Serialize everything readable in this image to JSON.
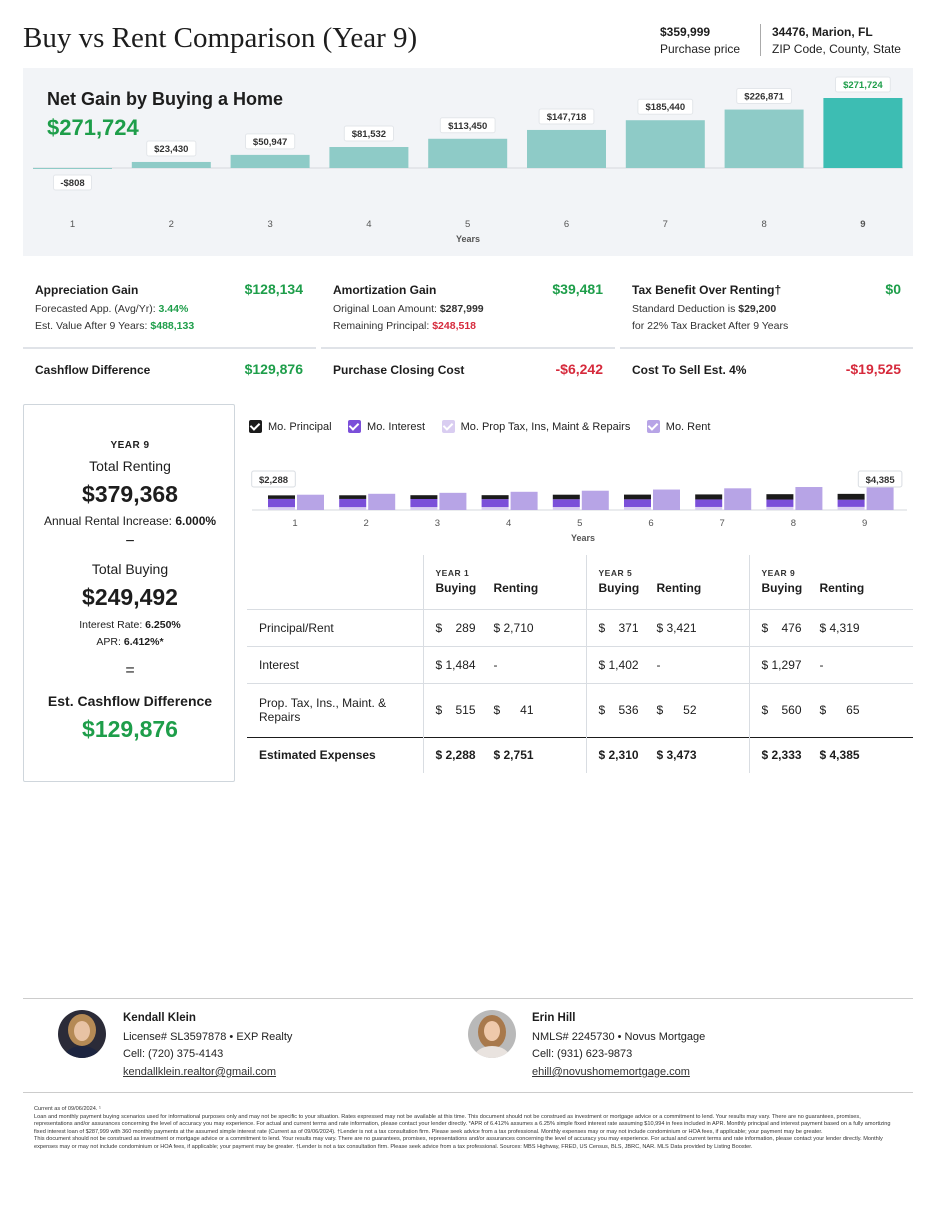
{
  "header": {
    "title": "Buy vs Rent Comparison (Year 9)",
    "price_value": "$359,999",
    "price_label": "Purchase price",
    "location_value": "34476, Marion, FL",
    "location_label": "ZIP Code, County, State"
  },
  "net_gain": {
    "title": "Net Gain by Buying a Home",
    "value": "$271,724",
    "x_label": "Years"
  },
  "chart_data": [
    {
      "type": "bar",
      "title": "Net Gain by Buying a Home",
      "xlabel": "Years",
      "categories": [
        "1",
        "2",
        "3",
        "4",
        "5",
        "6",
        "7",
        "8",
        "9"
      ],
      "values": [
        -808,
        23430,
        50947,
        81532,
        113450,
        147718,
        185440,
        226871,
        271724
      ],
      "labels": [
        "-$808",
        "$23,430",
        "$50,947",
        "$81,532",
        "$113,450",
        "$147,718",
        "$185,440",
        "$226,871",
        "$271,724"
      ],
      "colors": {
        "bar": "#8ecbc7",
        "highlight": "#3dbdb3"
      }
    },
    {
      "type": "bar",
      "xlabel": "Years",
      "categories": [
        "1",
        "2",
        "3",
        "4",
        "5",
        "6",
        "7",
        "8",
        "9"
      ],
      "series": [
        {
          "name": "Mo. Principal",
          "values": [
            289,
            300,
            311,
            322,
            371,
            386,
            410,
            440,
            476
          ]
        },
        {
          "name": "Mo. Interest",
          "values": [
            1484,
            1470,
            1455,
            1430,
            1402,
            1380,
            1355,
            1325,
            1297
          ]
        },
        {
          "name": "Mo. Prop Tax, Ins, Maint & Repairs",
          "values": [
            515,
            520,
            525,
            530,
            536,
            542,
            548,
            554,
            560
          ]
        },
        {
          "name": "Mo. Rent",
          "values": [
            2751,
            2916,
            3091,
            3277,
            3473,
            3682,
            3903,
            4137,
            4385
          ]
        }
      ],
      "buy_labels": {
        "index": 0,
        "text": "$2,288"
      },
      "rent_labels": {
        "index": 8,
        "text": "$4,385"
      },
      "colors": {
        "principal": "#1b1b1b",
        "interest": "#7b4fd9",
        "tax": "#d9cdf1",
        "rent": "#b7a4e6"
      }
    }
  ],
  "stats": {
    "appreciation": {
      "title": "Appreciation Gain",
      "value": "$128,134",
      "line1_label": "Forecasted App. (Avg/Yr): ",
      "line1_value": "3.44%",
      "line2_label": "Est. Value After 9 Years: ",
      "line2_value": "$488,133"
    },
    "amortization": {
      "title": "Amortization Gain",
      "value": "$39,481",
      "line1_label": "Original Loan Amount: ",
      "line1_value": "$287,999",
      "line2_label": "Remaining Principal: ",
      "line2_value": "$248,518"
    },
    "tax_benefit": {
      "title": "Tax Benefit Over Renting†",
      "value": "$0",
      "line1_label": "Standard Deduction is ",
      "line1_value": "$29,200",
      "line2_label": "for 22% Tax Bracket After 9 Years"
    },
    "cashflow": {
      "title": "Cashflow Difference",
      "value": "$129,876"
    },
    "closing": {
      "title": "Purchase Closing Cost",
      "value": "-$6,242"
    },
    "sell": {
      "title": "Cost To Sell Est. 4%",
      "value": "-$19,525"
    }
  },
  "left_card": {
    "year": "YEAR 9",
    "renting_label": "Total Renting",
    "renting_value": "$379,368",
    "rent_increase_label": "Annual Rental Increase: ",
    "rent_increase_value": "6.000%",
    "minus": "−",
    "buying_label": "Total Buying",
    "buying_value": "$249,492",
    "interest_label": "Interest Rate: ",
    "interest_value": "6.250%",
    "apr_label": "APR: ",
    "apr_value": "6.412%*",
    "equals": "=",
    "cashflow_label": "Est. Cashflow Difference",
    "cashflow_value": "$129,876"
  },
  "legend": [
    "Mo. Principal",
    "Mo. Interest",
    "Mo. Prop Tax, Ins, Maint & Repairs",
    "Mo. Rent"
  ],
  "expenses": {
    "groups": [
      {
        "year": "YEAR 1",
        "buying": "Buying",
        "renting": "Renting"
      },
      {
        "year": "YEAR 5",
        "buying": "Buying",
        "renting": "Renting"
      },
      {
        "year": "YEAR 9",
        "buying": "Buying",
        "renting": "Renting"
      }
    ],
    "rows": [
      {
        "label": "Principal/Rent",
        "cells": [
          [
            "$    289",
            "$ 2,710"
          ],
          [
            "$    371",
            "$ 3,421"
          ],
          [
            "$    476",
            "$ 4,319"
          ]
        ]
      },
      {
        "label": "Interest",
        "cells": [
          [
            "$ 1,484",
            "-"
          ],
          [
            "$ 1,402",
            "-"
          ],
          [
            "$ 1,297",
            "-"
          ]
        ]
      },
      {
        "label": "Prop. Tax, Ins., Maint. & Repairs",
        "cells": [
          [
            "$    515",
            "$      41"
          ],
          [
            "$    536",
            "$      52"
          ],
          [
            "$    560",
            "$      65"
          ]
        ]
      },
      {
        "label": "Estimated Expenses",
        "cells": [
          [
            "$ 2,288",
            "$ 2,751"
          ],
          [
            "$ 2,310",
            "$ 3,473"
          ],
          [
            "$ 2,333",
            "$ 4,385"
          ]
        ]
      }
    ]
  },
  "agents": [
    {
      "name": "Kendall Klein",
      "line1": "License# SL3597878 • EXP Realty",
      "line2": "Cell: (720) 375-4143",
      "email": "kendallklein.realtor@gmail.com"
    },
    {
      "name": "Erin Hill",
      "line1": "NMLS# 2245730 • Novus Mortgage",
      "line2": "Cell: (931) 623-9873",
      "email": "ehill@novushomemortgage.com"
    }
  ],
  "disclaimer": "Current as of 09/06/2024. ¹\nLoan and monthly payment buying scenarios used for informational purposes only and may not be specific to your situation. Rates expressed may not be available at this time. This document should not be construed as investment or mortgage advice or a commitment to lend. Your results may vary. There are no guarantees, promises, representations and/or assurances concerning the level of accuracy you may experience. For actual and current terms and rate information, please contact your lender directly. *APR of 6.412% assumes a 6.25% simple fixed interest rate assuming $10,994 in fees included in APR. Monthly principal and interest payment based on a fully amortizing fixed interest loan of $287,999 with 360 monthly payments at the assumed simple interest rate (Current as of 09/06/2024). †Lender is not a tax consultation firm. Please seek advice from a tax professional. Monthly expenses may or may not include condominium or HOA fees, if applicable; your payment may be greater.\nThis document should not be construed as investment or mortgage advice or a commitment to lend. Your results may vary. There are no guarantees, promises, representations and/or assurances concerning the level of accuracy you may experience. For actual and current terms and rate information, please contact your lender directly. Monthly expenses may or may not include condominium or HOA fees, if applicable; your payment may be greater. †Lender is not a tax consultation firm. Please seek advice from a tax professional. Sources: MBS Highway, FRED, US Census, BLS, JBRC, NAR. MLS Data provided by Listing Booster."
}
